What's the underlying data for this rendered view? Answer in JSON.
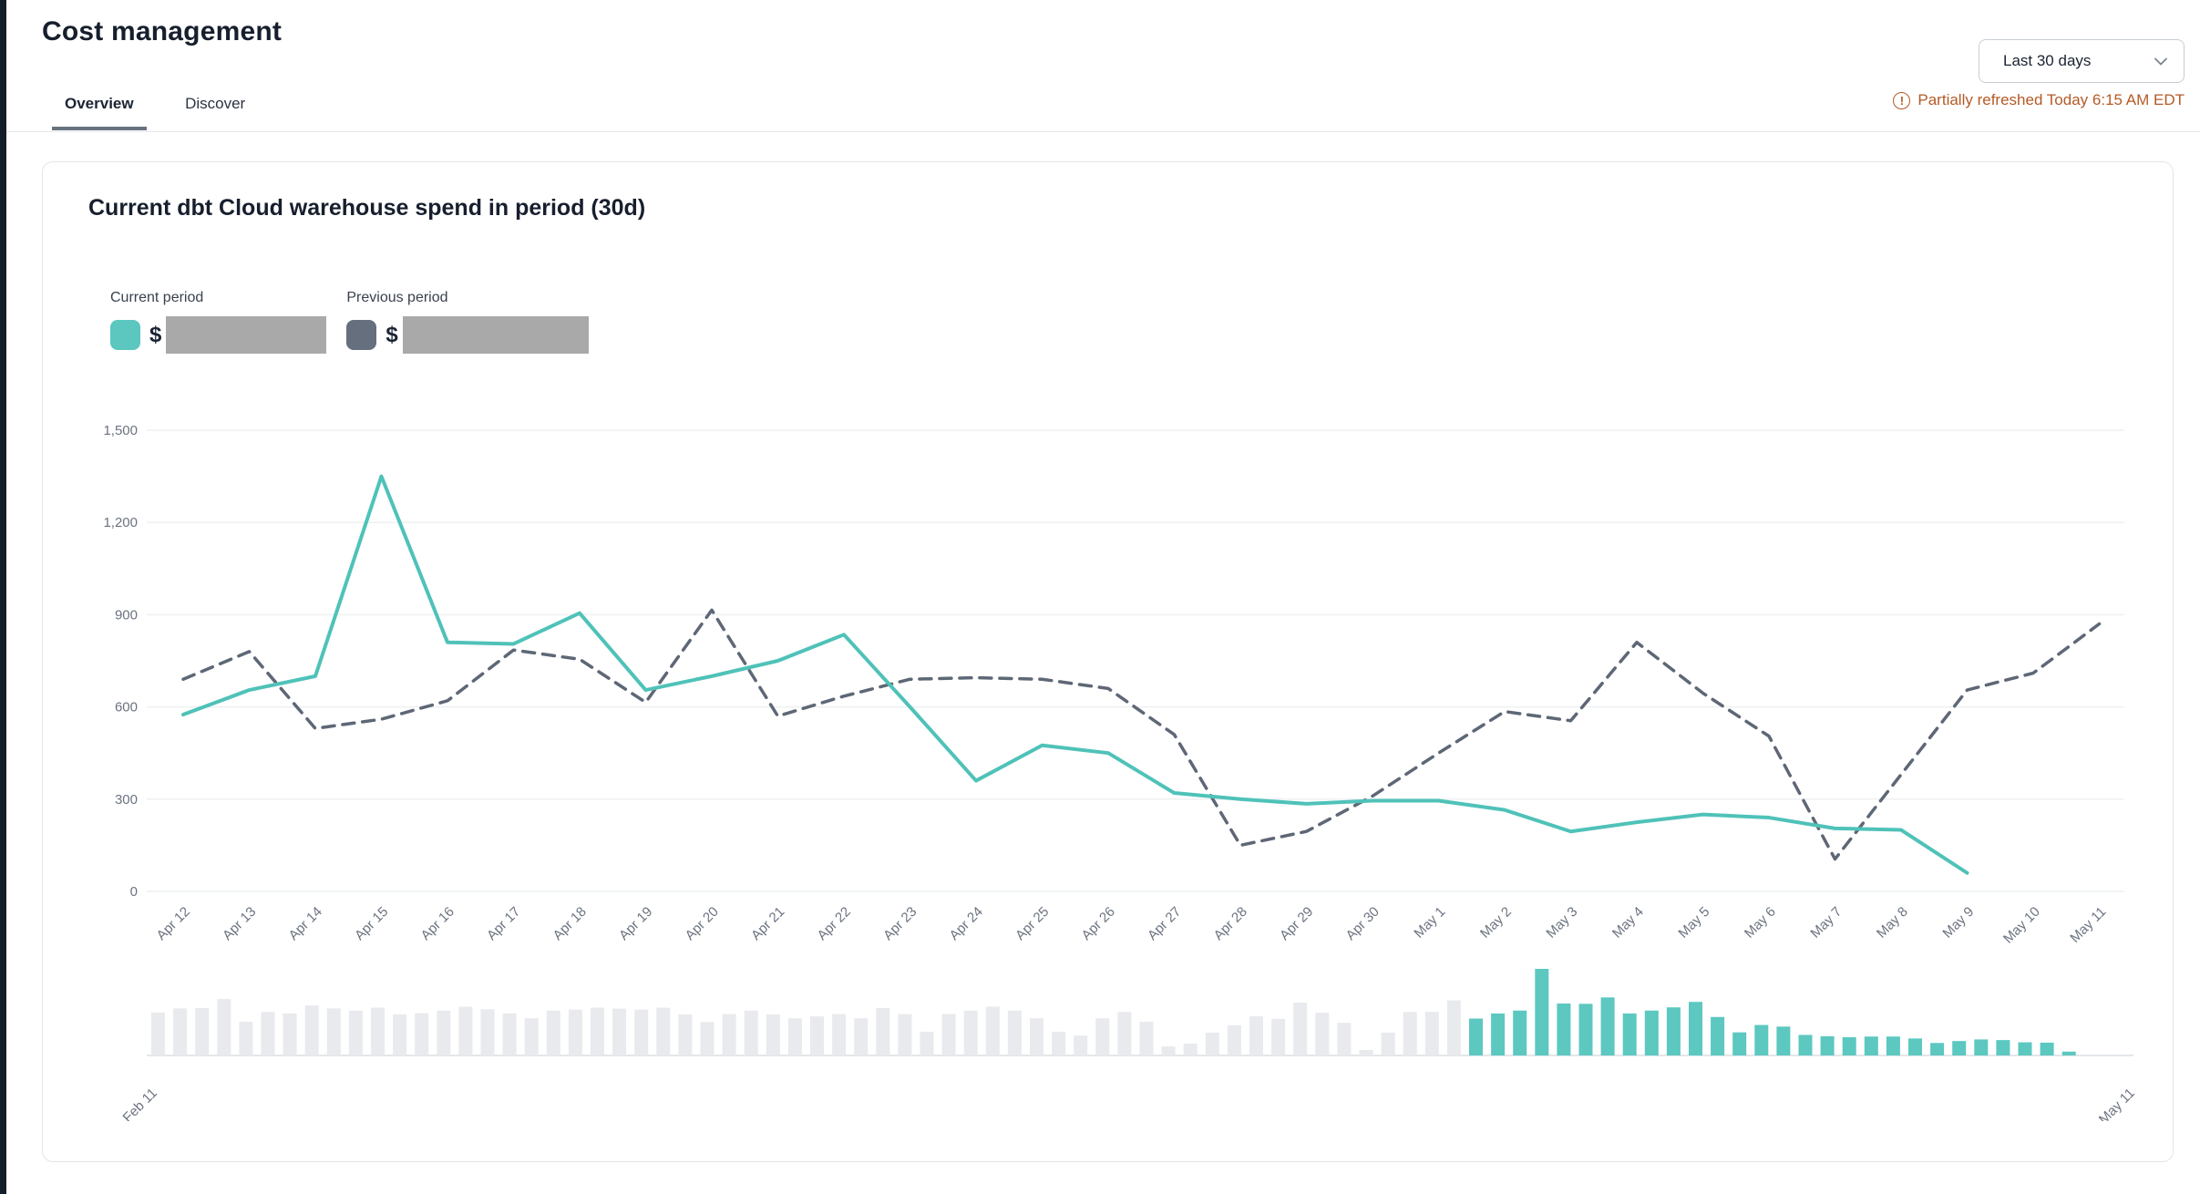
{
  "header": {
    "title": "Cost management",
    "tabs": [
      {
        "label": "Overview",
        "active": true
      },
      {
        "label": "Discover",
        "active": false
      }
    ],
    "range_selector_value": "Last 30 days",
    "refresh_notice": "Partially refreshed Today 6:15 AM EDT"
  },
  "card": {
    "title": "Current dbt Cloud warehouse spend in period (30d)",
    "legend": {
      "current_label": "Current period",
      "previous_label": "Previous period",
      "currency_symbol": "$",
      "current_value_redacted": true,
      "previous_value_redacted": true
    }
  },
  "colors": {
    "teal": "#4fc2b8",
    "teal_bar": "#5cc8c0",
    "teal_swatch": "#5bc7be",
    "slate": "#5e6776",
    "slate_swatch": "#666f7e",
    "grid": "#eef0f2",
    "axis_text": "#6b7380",
    "gray_bar": "#e8eaed",
    "redaction": "#a9a9a9",
    "warning": "#b45a26"
  },
  "chart_data": {
    "type": "line",
    "title": "Current dbt Cloud warehouse spend in period (30d)",
    "xlabel": "",
    "ylabel": "",
    "ylim": [
      0,
      1500
    ],
    "grid": true,
    "legend_position": "top-left",
    "yticks": [
      {
        "v": 0,
        "label": "0"
      },
      {
        "v": 300,
        "label": "300"
      },
      {
        "v": 600,
        "label": "600"
      },
      {
        "v": 900,
        "label": "900"
      },
      {
        "v": 1200,
        "label": "1,200"
      },
      {
        "v": 1500,
        "label": "1,500"
      }
    ],
    "x_labels": [
      "Apr 12",
      "Apr 13",
      "Apr 14",
      "Apr 15",
      "Apr 16",
      "Apr 17",
      "Apr 18",
      "Apr 19",
      "Apr 20",
      "Apr 21",
      "Apr 22",
      "Apr 23",
      "Apr 24",
      "Apr 25",
      "Apr 26",
      "Apr 27",
      "Apr 28",
      "Apr 29",
      "Apr 30",
      "May 1",
      "May 2",
      "May 3",
      "May 4",
      "May 5",
      "May 6",
      "May 7",
      "May 8",
      "May 9",
      "May 10",
      "May 11"
    ],
    "series": [
      {
        "name": "Current period",
        "style": "solid",
        "color_key": "teal",
        "values": [
          575,
          655,
          700,
          1350,
          810,
          805,
          905,
          655,
          700,
          750,
          835,
          600,
          360,
          475,
          450,
          320,
          300,
          285,
          295,
          295,
          265,
          195,
          225,
          250,
          240,
          205,
          200,
          60,
          null,
          null
        ]
      },
      {
        "name": "Previous period",
        "style": "dashed",
        "color_key": "slate",
        "values": [
          690,
          780,
          530,
          560,
          620,
          785,
          755,
          615,
          915,
          570,
          635,
          690,
          695,
          690,
          660,
          510,
          150,
          195,
          310,
          450,
          585,
          555,
          810,
          645,
          505,
          105,
          380,
          655,
          710,
          870
        ]
      }
    ],
    "mini": {
      "type": "bar",
      "range_start_label": "Feb 11",
      "range_end_label": "May 11",
      "unselected_values": [
        670,
        735,
        740,
        880,
        525,
        680,
        655,
        780,
        735,
        700,
        745,
        640,
        660,
        700,
        760,
        720,
        655,
        580,
        700,
        715,
        745,
        730,
        715,
        745,
        640,
        520,
        645,
        700,
        640,
        580,
        610,
        645,
        580,
        740,
        645,
        370,
        645,
        700,
        760,
        700,
        580,
        370,
        310,
        580,
        680,
        525,
        140,
        185,
        355,
        470,
        610,
        570,
        825,
        665,
        510,
        85,
        355,
        680,
        680,
        860
      ],
      "selected_values": [
        575,
        655,
        700,
        1350,
        810,
        805,
        905,
        655,
        700,
        750,
        835,
        600,
        360,
        475,
        450,
        320,
        300,
        285,
        295,
        295,
        265,
        195,
        225,
        250,
        240,
        205,
        200,
        60
      ]
    }
  }
}
